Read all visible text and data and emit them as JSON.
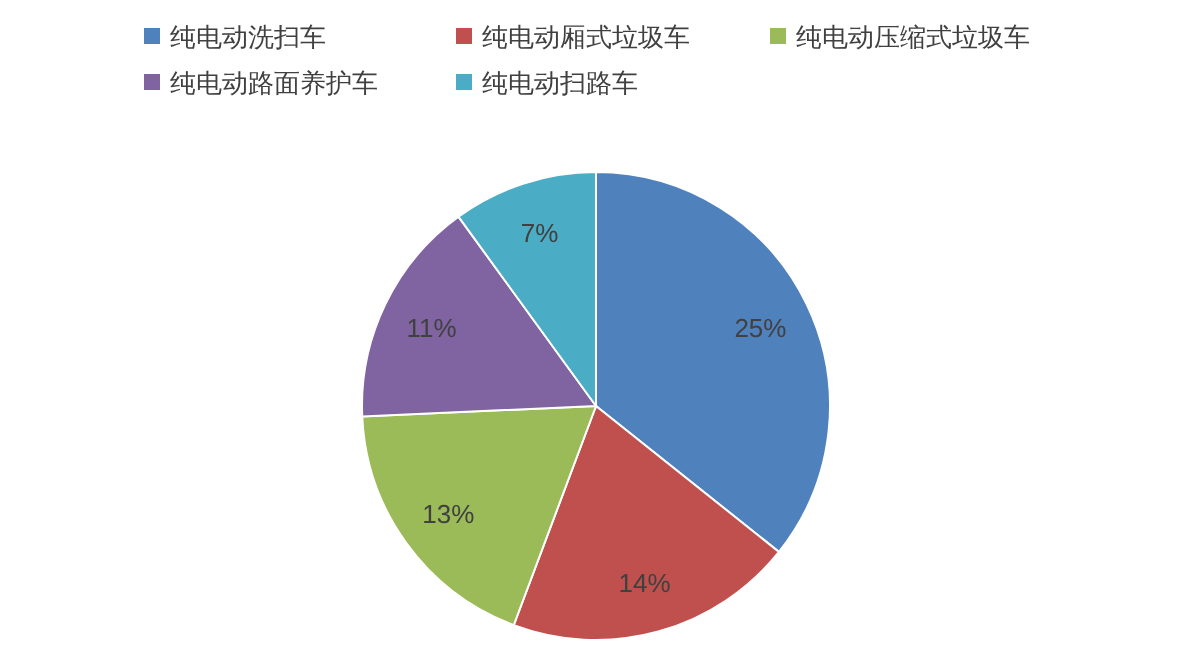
{
  "chart_data": {
    "type": "pie",
    "categories": [
      "纯电动洗扫车",
      "纯电动厢式垃圾车",
      "纯电动压缩式垃圾车",
      "纯电动路面养护车",
      "纯电动扫路车"
    ],
    "values": [
      25,
      14,
      13,
      11,
      7
    ],
    "colors": [
      "#4f81bd",
      "#c0504d",
      "#9bbb59",
      "#8064a2",
      "#4bacc6"
    ],
    "value_labels": [
      "25%",
      "14%",
      "13%",
      "11%",
      "7%"
    ],
    "legend": "top"
  }
}
